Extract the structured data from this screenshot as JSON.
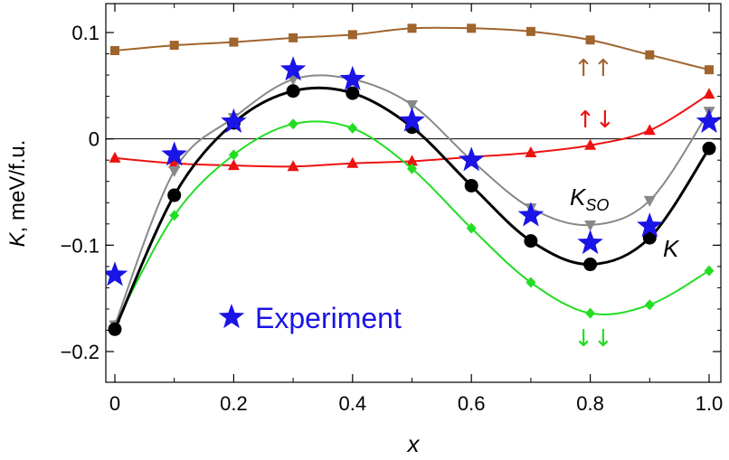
{
  "chart_data": {
    "type": "line",
    "xlabel": "x",
    "ylabel": {
      "symbol": "K",
      "units": ", meV/f.u."
    },
    "xlim": [
      -0.02,
      1.02
    ],
    "ylim": [
      -0.228,
      0.128
    ],
    "x_ticks": [
      0,
      0.2,
      0.4,
      0.6,
      0.8,
      1.0
    ],
    "x_tick_labels": [
      "0",
      "0.2",
      "0.4",
      "0.6",
      "0.8",
      "1.0"
    ],
    "y_ticks": [
      -0.2,
      -0.1,
      0,
      0.1
    ],
    "y_tick_labels": [
      "−0.2",
      "−0.1",
      "0",
      "0.1"
    ],
    "x": [
      0,
      0.1,
      0.2,
      0.3,
      0.4,
      0.5,
      0.6,
      0.7,
      0.8,
      0.9,
      1.0
    ],
    "series": [
      {
        "id": "upup",
        "label": "↑↑",
        "color": "#a0642d",
        "marker": "square",
        "values": [
          0.083,
          0.088,
          0.091,
          0.095,
          0.098,
          0.104,
          0.104,
          0.101,
          0.093,
          0.079,
          0.065
        ]
      },
      {
        "id": "updown",
        "label": "↑↓",
        "color": "#ee1111",
        "marker": "triangle-up",
        "values": [
          -0.018,
          -0.023,
          -0.025,
          -0.026,
          -0.023,
          -0.021,
          -0.017,
          -0.013,
          -0.006,
          0.008,
          0.042
        ]
      },
      {
        "id": "downdown",
        "label": "↓↓",
        "color": "#22dd22",
        "marker": "diamond",
        "values": [
          -0.175,
          -0.072,
          -0.015,
          0.014,
          0.01,
          -0.028,
          -0.084,
          -0.135,
          -0.164,
          -0.156,
          -0.124
        ]
      },
      {
        "id": "kso",
        "label_main": "K",
        "label_sub": "SO",
        "color": "#888888",
        "marker": "triangle-down",
        "values": [
          -0.175,
          -0.03,
          0.02,
          0.056,
          0.056,
          0.032,
          -0.02,
          -0.065,
          -0.081,
          -0.058,
          0.026
        ]
      },
      {
        "id": "k",
        "label": "K",
        "color": "#000000",
        "marker": "circle",
        "values": [
          -0.179,
          -0.053,
          0.015,
          0.045,
          0.043,
          0.011,
          -0.044,
          -0.096,
          -0.118,
          -0.093,
          -0.009
        ]
      }
    ],
    "experiment": {
      "label": "Experiment",
      "color": "#1a14e6",
      "marker": "star",
      "values": [
        -0.128,
        -0.015,
        0.016,
        0.065,
        0.056,
        0.017,
        -0.02,
        -0.072,
        -0.098,
        -0.082,
        0.016
      ]
    },
    "zero_line": true,
    "grid": false
  }
}
